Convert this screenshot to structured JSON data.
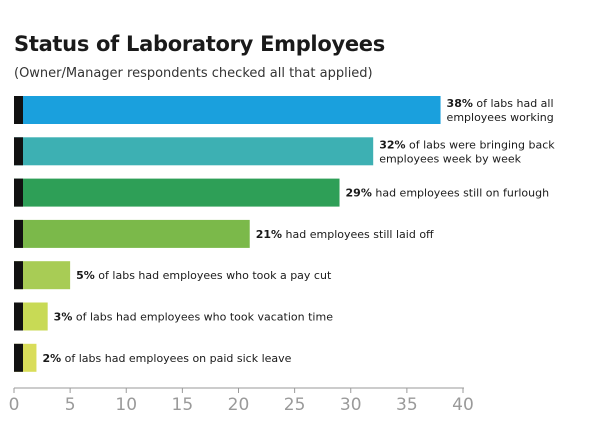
{
  "title": "Status of Laboratory Employees",
  "subtitle": "(Owner/Manager respondents checked all that applied)",
  "chart_data": {
    "type": "bar",
    "orientation": "horizontal",
    "title": "Status of Laboratory Employees",
    "subtitle": "(Owner/Manager respondents checked all that applied)",
    "xlim": [
      0,
      40
    ],
    "xticks": [
      "0",
      "5",
      "10",
      "15",
      "20",
      "25",
      "30",
      "35",
      "40"
    ],
    "grid": false,
    "bars": [
      {
        "value": 38,
        "color": "#1aa0dd",
        "label_value": "38%",
        "label_lines": [
          " of labs had all",
          "employees working"
        ]
      },
      {
        "value": 32,
        "color": "#3db0b3",
        "label_value": "32%",
        "label_lines": [
          " of labs were bringing back",
          "employees week by week"
        ]
      },
      {
        "value": 29,
        "color": "#2e9f57",
        "label_value": "29%",
        "label_lines": [
          " had employees still on furlough"
        ]
      },
      {
        "value": 21,
        "color": "#7bb94a",
        "label_value": "21%",
        "label_lines": [
          "  had employees still laid off"
        ]
      },
      {
        "value": 5,
        "color": "#a8cc55",
        "label_value": "5%",
        "label_lines": [
          " of labs had employees who took a pay cut"
        ]
      },
      {
        "value": 3,
        "color": "#c8da55",
        "label_value": "3%",
        "label_lines": [
          " of labs had employees who took vacation time"
        ]
      },
      {
        "value": 2,
        "color": "#d9dd5a",
        "label_value": "2%",
        "label_lines": [
          " of labs had employees on paid sick leave"
        ]
      }
    ]
  }
}
